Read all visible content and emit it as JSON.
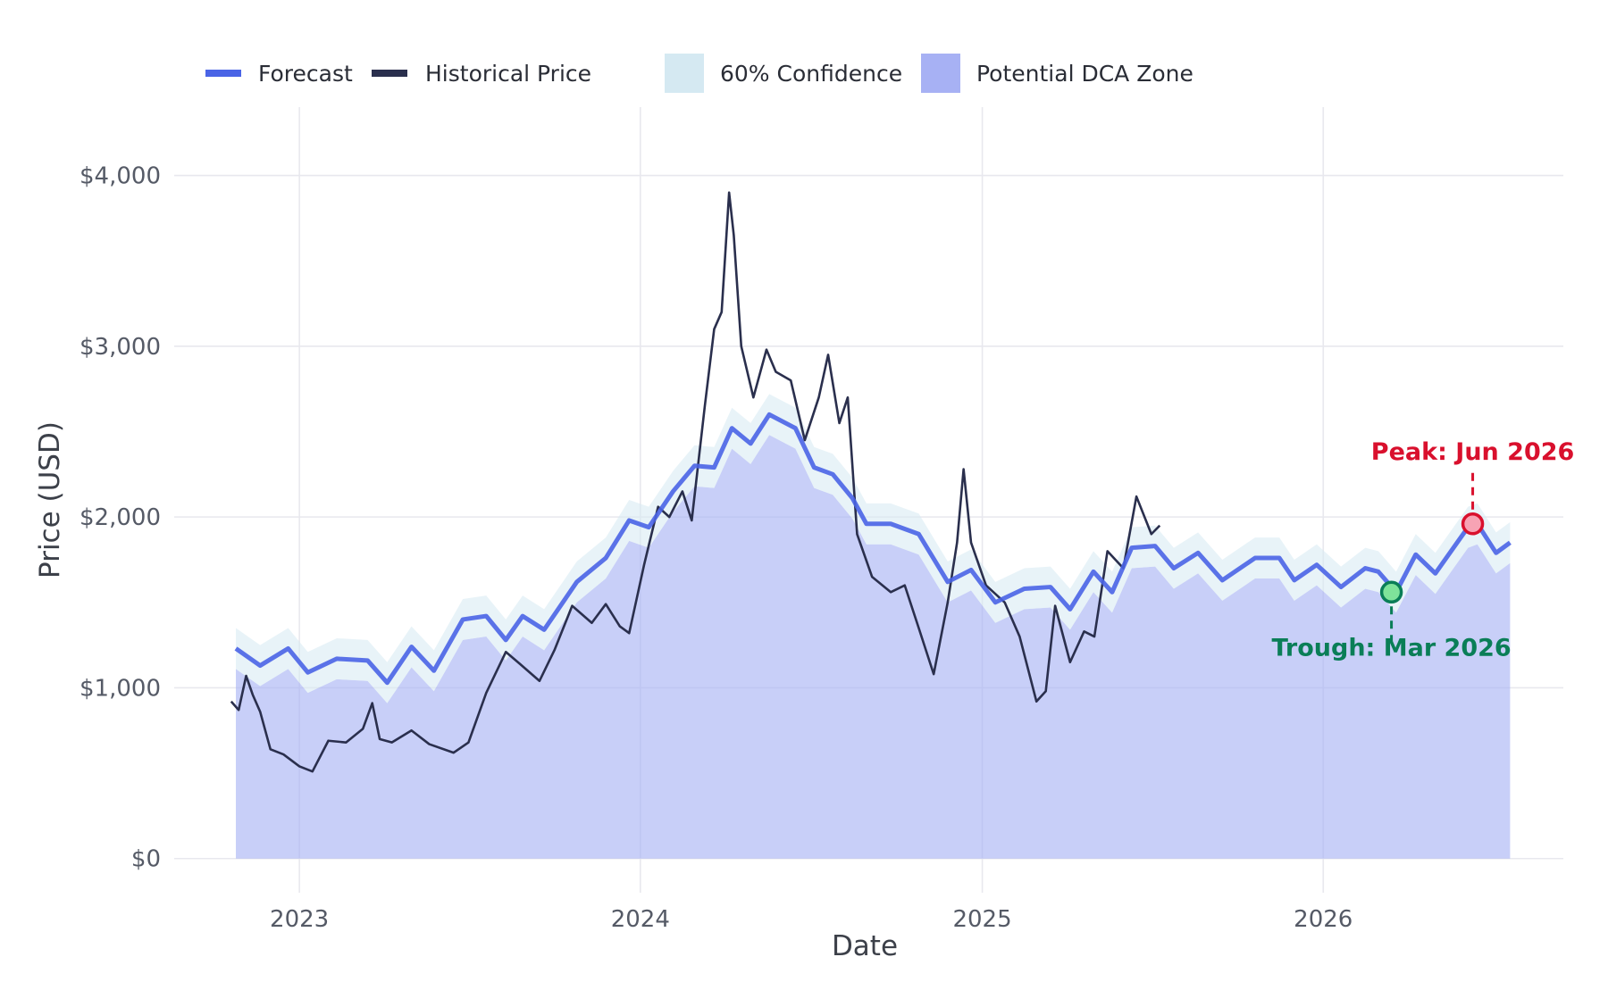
{
  "colors": {
    "forecast": "#4a64e6",
    "historical": "#2a2f4d",
    "confidence": "#d5e9f2",
    "dca_zone": "#a7b1f4",
    "peak": "#d9102d",
    "trough": "#0a7e57",
    "grid": "#e8e8ee"
  },
  "chart_data": {
    "type": "line",
    "xlabel": "Date",
    "ylabel": "Price (USD)",
    "xlim": [
      "2022-08-20",
      "2026-09-15"
    ],
    "ylim": [
      -200,
      4400
    ],
    "x_ticks": [
      "2023",
      "2024",
      "2025",
      "2026"
    ],
    "y_ticks": [
      "$0",
      "$1,000",
      "$2,000",
      "$3,000",
      "$4,000"
    ],
    "grid": true,
    "legend_position": "top",
    "legend": [
      {
        "label": "Forecast",
        "kind": "line",
        "color": "#4a64e6"
      },
      {
        "label": "Historical Price",
        "kind": "line",
        "color": "#2a2f4d"
      },
      {
        "label": "60% Confidence",
        "kind": "area",
        "color": "#d5e9f2"
      },
      {
        "label": "Potential DCA Zone",
        "kind": "area",
        "color": "#a7b1f4"
      }
    ],
    "series": [
      {
        "name": "Historical Price",
        "points": [
          [
            "2022-10-20",
            920
          ],
          [
            "2022-10-28",
            870
          ],
          [
            "2022-11-05",
            1070
          ],
          [
            "2022-11-12",
            960
          ],
          [
            "2022-11-20",
            860
          ],
          [
            "2022-12-01",
            640
          ],
          [
            "2022-12-15",
            610
          ],
          [
            "2023-01-01",
            540
          ],
          [
            "2023-01-15",
            510
          ],
          [
            "2023-02-01",
            690
          ],
          [
            "2023-02-20",
            680
          ],
          [
            "2023-03-10",
            760
          ],
          [
            "2023-03-20",
            910
          ],
          [
            "2023-03-28",
            700
          ],
          [
            "2023-04-10",
            680
          ],
          [
            "2023-05-01",
            750
          ],
          [
            "2023-05-20",
            670
          ],
          [
            "2023-06-15",
            620
          ],
          [
            "2023-07-01",
            680
          ],
          [
            "2023-07-20",
            970
          ],
          [
            "2023-08-10",
            1210
          ],
          [
            "2023-08-25",
            1140
          ],
          [
            "2023-09-15",
            1040
          ],
          [
            "2023-10-01",
            1220
          ],
          [
            "2023-10-20",
            1480
          ],
          [
            "2023-11-10",
            1380
          ],
          [
            "2023-11-25",
            1490
          ],
          [
            "2023-12-10",
            1360
          ],
          [
            "2023-12-20",
            1320
          ],
          [
            "2024-01-05",
            1720
          ],
          [
            "2024-01-20",
            2060
          ],
          [
            "2024-02-01",
            2000
          ],
          [
            "2024-02-15",
            2150
          ],
          [
            "2024-02-25",
            1980
          ],
          [
            "2024-03-10",
            2650
          ],
          [
            "2024-03-20",
            3100
          ],
          [
            "2024-03-28",
            3200
          ],
          [
            "2024-04-05",
            3900
          ],
          [
            "2024-04-10",
            3650
          ],
          [
            "2024-04-18",
            3000
          ],
          [
            "2024-05-01",
            2700
          ],
          [
            "2024-05-15",
            2980
          ],
          [
            "2024-05-25",
            2850
          ],
          [
            "2024-06-10",
            2800
          ],
          [
            "2024-06-25",
            2450
          ],
          [
            "2024-07-10",
            2700
          ],
          [
            "2024-07-20",
            2950
          ],
          [
            "2024-08-01",
            2550
          ],
          [
            "2024-08-10",
            2700
          ],
          [
            "2024-08-20",
            1900
          ],
          [
            "2024-09-05",
            1650
          ],
          [
            "2024-09-25",
            1560
          ],
          [
            "2024-10-10",
            1600
          ],
          [
            "2024-10-25",
            1350
          ],
          [
            "2024-11-10",
            1080
          ],
          [
            "2024-11-25",
            1500
          ],
          [
            "2024-12-05",
            1850
          ],
          [
            "2024-12-12",
            2280
          ],
          [
            "2024-12-20",
            1850
          ],
          [
            "2025-01-05",
            1600
          ],
          [
            "2025-01-25",
            1500
          ],
          [
            "2025-02-10",
            1300
          ],
          [
            "2025-02-28",
            920
          ],
          [
            "2025-03-10",
            980
          ],
          [
            "2025-03-20",
            1480
          ],
          [
            "2025-04-05",
            1150
          ],
          [
            "2025-04-20",
            1330
          ],
          [
            "2025-05-01",
            1300
          ],
          [
            "2025-05-15",
            1800
          ],
          [
            "2025-06-01",
            1700
          ],
          [
            "2025-06-15",
            2120
          ],
          [
            "2025-07-01",
            1900
          ],
          [
            "2025-07-10",
            1950
          ]
        ]
      },
      {
        "name": "Forecast",
        "points": [
          [
            "2022-10-25",
            1230
          ],
          [
            "2022-11-20",
            1130
          ],
          [
            "2022-12-20",
            1230
          ],
          [
            "2023-01-10",
            1090
          ],
          [
            "2023-02-10",
            1170
          ],
          [
            "2023-03-15",
            1160
          ],
          [
            "2023-04-05",
            1030
          ],
          [
            "2023-05-01",
            1240
          ],
          [
            "2023-05-25",
            1100
          ],
          [
            "2023-06-25",
            1400
          ],
          [
            "2023-07-20",
            1420
          ],
          [
            "2023-08-10",
            1280
          ],
          [
            "2023-08-28",
            1420
          ],
          [
            "2023-09-20",
            1340
          ],
          [
            "2023-10-25",
            1620
          ],
          [
            "2023-11-25",
            1760
          ],
          [
            "2023-12-20",
            1980
          ],
          [
            "2024-01-10",
            1940
          ],
          [
            "2024-02-05",
            2150
          ],
          [
            "2024-02-28",
            2300
          ],
          [
            "2024-03-20",
            2290
          ],
          [
            "2024-04-08",
            2520
          ],
          [
            "2024-04-28",
            2430
          ],
          [
            "2024-05-18",
            2600
          ],
          [
            "2024-06-15",
            2520
          ],
          [
            "2024-07-05",
            2290
          ],
          [
            "2024-07-25",
            2250
          ],
          [
            "2024-08-15",
            2110
          ],
          [
            "2024-08-30",
            1960
          ],
          [
            "2024-09-25",
            1960
          ],
          [
            "2024-10-25",
            1900
          ],
          [
            "2024-11-25",
            1620
          ],
          [
            "2024-12-20",
            1690
          ],
          [
            "2025-01-15",
            1500
          ],
          [
            "2025-02-15",
            1580
          ],
          [
            "2025-03-15",
            1590
          ],
          [
            "2025-04-05",
            1460
          ],
          [
            "2025-04-30",
            1680
          ],
          [
            "2025-05-20",
            1560
          ],
          [
            "2025-06-10",
            1820
          ],
          [
            "2025-07-05",
            1830
          ],
          [
            "2025-07-25",
            1700
          ],
          [
            "2025-08-20",
            1790
          ],
          [
            "2025-09-15",
            1630
          ],
          [
            "2025-10-20",
            1760
          ],
          [
            "2025-11-15",
            1760
          ],
          [
            "2025-12-01",
            1630
          ],
          [
            "2025-12-25",
            1720
          ],
          [
            "2026-01-20",
            1590
          ],
          [
            "2026-02-15",
            1700
          ],
          [
            "2026-03-01",
            1680
          ],
          [
            "2026-03-20",
            1560
          ],
          [
            "2026-04-10",
            1780
          ],
          [
            "2026-05-01",
            1670
          ],
          [
            "2026-06-05",
            1940
          ],
          [
            "2026-06-15",
            1960
          ],
          [
            "2026-07-05",
            1790
          ],
          [
            "2026-07-20",
            1850
          ]
        ]
      }
    ],
    "bands": [
      {
        "name": "60% Confidence",
        "upper_offset": 120,
        "lower_offset": 120
      },
      {
        "name": "Potential DCA Zone",
        "from": 0,
        "to": "forecast_lower_bound"
      }
    ],
    "annotations": [
      {
        "label": "Peak: Jun 2026",
        "date": "2026-06-10",
        "value": 1960,
        "kind": "peak"
      },
      {
        "label": "Trough: Mar 2026",
        "date": "2026-03-15",
        "value": 1560,
        "kind": "trough"
      }
    ]
  }
}
